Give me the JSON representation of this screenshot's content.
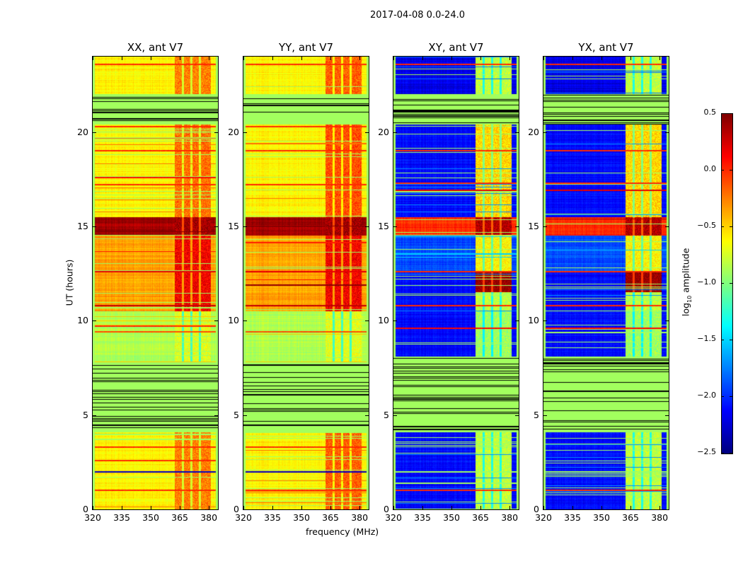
{
  "chart_data": {
    "type": "heatmap",
    "title": "2017-04-08 0.0-24.0",
    "xlabel": "frequency (MHz)",
    "ylabel": "UT (hours)",
    "xlim": [
      320,
      384.7
    ],
    "ylim": [
      0,
      24
    ],
    "xticks": [
      320,
      335,
      350,
      365,
      380
    ],
    "yticks": [
      0,
      5,
      10,
      15,
      20
    ],
    "colorbar": {
      "label": "log10 amplitude",
      "label_main": "log",
      "label_sub": "10",
      "label_rest": " amplitude",
      "range": [
        -2.5,
        0.5
      ],
      "ticks": [
        "0.5",
        "0.0",
        "−0.5",
        "−1.0",
        "−1.5",
        "−2.0",
        "−2.5"
      ],
      "tick_values": [
        0.5,
        0.0,
        -0.5,
        -1.0,
        -1.5,
        -2.0,
        -2.5
      ],
      "colormap": "jet"
    },
    "rfi_band_mhz": [
      362.5,
      381
    ],
    "rfi_gaps_mhz": [
      366.6,
      371.0,
      375.4
    ],
    "flagged_value": -0.9,
    "panels": [
      {
        "title": "XX, ant V7",
        "bands": [
          [
            0,
            4.1,
            -0.6,
            -0.25
          ],
          [
            4.1,
            7.8,
            "flag",
            "flag"
          ],
          [
            7.8,
            10.5,
            -0.85,
            -0.7
          ],
          [
            10.5,
            14.5,
            -0.35,
            0.15
          ],
          [
            14.5,
            15.5,
            0.4,
            0.4
          ],
          [
            15.5,
            20.4,
            -0.6,
            -0.2
          ],
          [
            20.4,
            22.0,
            "flag",
            "flag"
          ],
          [
            22.0,
            24,
            -0.6,
            -0.25
          ]
        ],
        "lines": [
          [
            1.0,
            0.0
          ],
          [
            2.0,
            -2.3
          ],
          [
            2.6,
            0.0
          ],
          [
            3.3,
            0.0
          ],
          [
            9.4,
            -0.1
          ],
          [
            9.7,
            0.0
          ],
          [
            10.8,
            0.3
          ],
          [
            12.6,
            0.2
          ],
          [
            17.2,
            0.0
          ],
          [
            17.6,
            0.1
          ],
          [
            19.0,
            0.0
          ],
          [
            20.3,
            0.0
          ],
          [
            21.6,
            0.0
          ],
          [
            23.6,
            0.0
          ]
        ]
      },
      {
        "title": "YY, ant V7",
        "bands": [
          [
            0,
            4.1,
            -0.6,
            -0.15
          ],
          [
            4.1,
            7.8,
            "flag",
            "flag"
          ],
          [
            7.8,
            10.5,
            -0.85,
            -0.7
          ],
          [
            10.5,
            14.5,
            -0.35,
            0.15
          ],
          [
            14.5,
            15.5,
            0.4,
            0.4
          ],
          [
            15.5,
            20.4,
            -0.6,
            -0.1
          ],
          [
            20.4,
            22.0,
            "flag",
            "flag"
          ],
          [
            22.0,
            24,
            -0.6,
            -0.15
          ]
        ],
        "lines": [
          [
            1.0,
            0.0
          ],
          [
            2.0,
            -2.3
          ],
          [
            3.3,
            0.0
          ],
          [
            9.4,
            -0.1
          ],
          [
            10.8,
            0.3
          ],
          [
            11.9,
            0.45
          ],
          [
            12.6,
            0.2
          ],
          [
            17.2,
            0.0
          ],
          [
            19.0,
            0.0
          ],
          [
            20.3,
            0.0
          ],
          [
            23.6,
            0.0
          ]
        ]
      },
      {
        "title": "XY, ant V7",
        "bands": [
          [
            0,
            4.1,
            -2.1,
            -0.8
          ],
          [
            4.1,
            8.1,
            "flag",
            "flag"
          ],
          [
            8.1,
            10.5,
            -2.1,
            -0.9
          ],
          [
            10.5,
            11.5,
            -2.1,
            -0.8
          ],
          [
            11.5,
            12.6,
            -2.1,
            0.45
          ],
          [
            12.6,
            14.5,
            -1.9,
            -0.6
          ],
          [
            14.5,
            15.5,
            0.0,
            0.35
          ],
          [
            15.5,
            20.4,
            -2.1,
            -0.5
          ],
          [
            20.4,
            22.0,
            "flag",
            "flag"
          ],
          [
            22.0,
            24,
            -2.2,
            -0.8
          ]
        ],
        "lines": [
          [
            1.0,
            0.0
          ],
          [
            2.0,
            -0.9
          ],
          [
            9.6,
            0.1
          ],
          [
            10.8,
            0.0
          ],
          [
            12.6,
            0.0
          ],
          [
            16.9,
            0.2
          ],
          [
            17.3,
            0.0
          ],
          [
            19.0,
            0.0
          ],
          [
            23.6,
            0.0
          ]
        ]
      },
      {
        "title": "YX, ant V7",
        "bands": [
          [
            0,
            4.1,
            -2.1,
            -0.8
          ],
          [
            4.1,
            8.1,
            "flag",
            "flag"
          ],
          [
            8.1,
            10.5,
            -2.1,
            -0.9
          ],
          [
            10.5,
            11.5,
            -2.1,
            -0.8
          ],
          [
            11.5,
            12.6,
            -2.1,
            0.45
          ],
          [
            12.6,
            14.5,
            -1.9,
            -0.6
          ],
          [
            14.5,
            15.5,
            0.0,
            0.35
          ],
          [
            15.5,
            20.4,
            -2.1,
            -0.5
          ],
          [
            20.4,
            22.0,
            "flag",
            "flag"
          ],
          [
            22.0,
            24,
            -2.2,
            -0.8
          ]
        ],
        "lines": [
          [
            1.0,
            0.0
          ],
          [
            2.0,
            -0.9
          ],
          [
            9.6,
            0.1
          ],
          [
            10.8,
            0.0
          ],
          [
            12.6,
            0.0
          ],
          [
            16.9,
            0.2
          ],
          [
            17.3,
            0.0
          ],
          [
            19.0,
            0.0
          ],
          [
            23.6,
            0.0
          ]
        ]
      }
    ]
  }
}
